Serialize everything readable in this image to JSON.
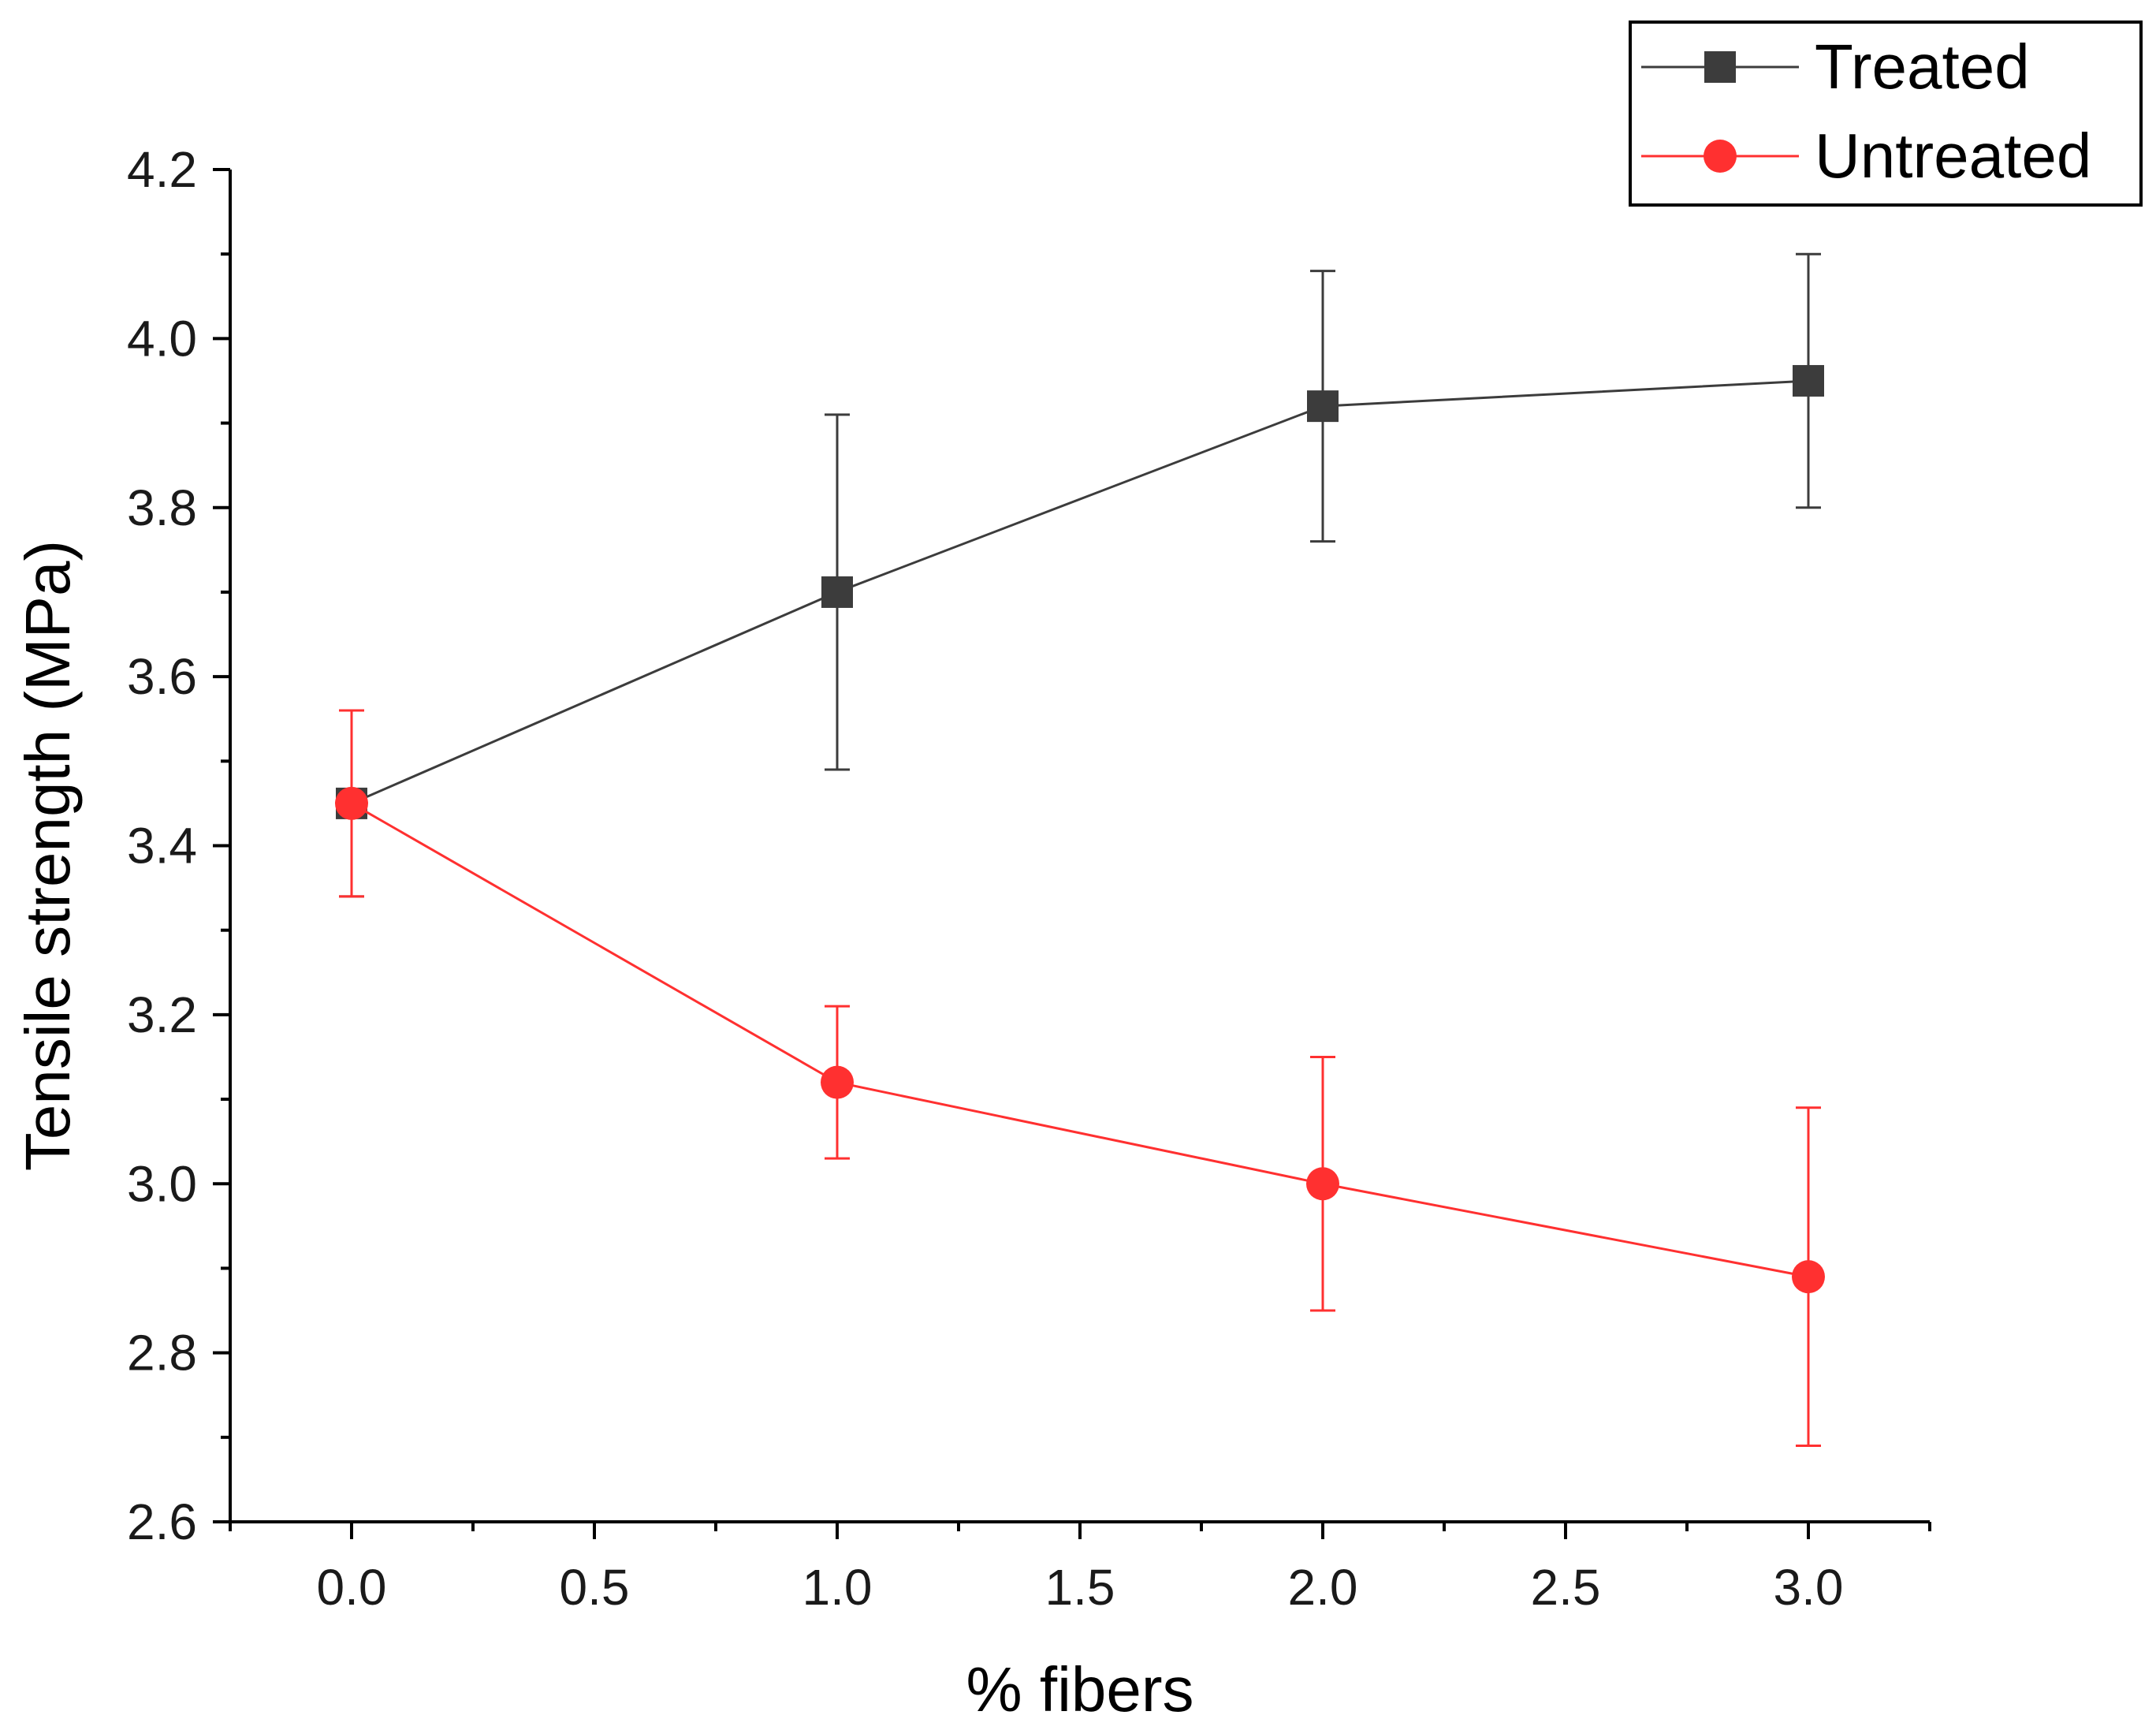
{
  "chart_data": {
    "type": "line",
    "title": "",
    "xlabel": "% fibers",
    "ylabel": "Tensile strength (MPa)",
    "xlim": [
      -0.25,
      3.25
    ],
    "ylim": [
      2.6,
      4.2
    ],
    "x_ticks": [
      0.0,
      0.5,
      1.0,
      1.5,
      2.0,
      2.5,
      3.0
    ],
    "x_tick_labels": [
      "0.0",
      "0.5",
      "1.0",
      "1.5",
      "2.0",
      "2.5",
      "3.0"
    ],
    "y_ticks": [
      2.6,
      2.8,
      3.0,
      3.2,
      3.4,
      3.6,
      3.8,
      4.0,
      4.2
    ],
    "y_tick_labels": [
      "2.6",
      "2.8",
      "3.0",
      "3.2",
      "3.4",
      "3.6",
      "3.8",
      "4.0",
      "4.2"
    ],
    "grid": false,
    "legend_position": "top-right",
    "series": [
      {
        "name": "Treated",
        "color": "#3c3c3c",
        "marker": "square",
        "x": [
          0.0,
          1.0,
          2.0,
          3.0
        ],
        "y": [
          3.45,
          3.7,
          3.92,
          3.95
        ],
        "error_low": [
          3.34,
          3.49,
          3.76,
          3.8
        ],
        "error_high": [
          3.56,
          3.91,
          4.08,
          4.1
        ]
      },
      {
        "name": "Untreated",
        "color": "#ff3030",
        "marker": "circle",
        "x": [
          0.0,
          1.0,
          2.0,
          3.0
        ],
        "y": [
          3.45,
          3.12,
          3.0,
          2.89
        ],
        "error_low": [
          3.34,
          3.03,
          2.85,
          2.69
        ],
        "error_high": [
          3.56,
          3.21,
          3.15,
          3.09
        ]
      }
    ]
  }
}
